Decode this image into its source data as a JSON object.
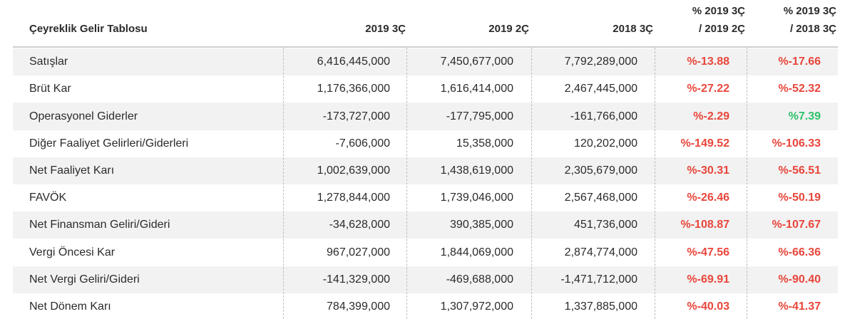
{
  "table": {
    "title": "Çeyreklik Gelir Tablosu",
    "columns": [
      [
        "2019 3Ç"
      ],
      [
        "2019 2Ç"
      ],
      [
        "2018 3Ç"
      ],
      [
        "% 2019 3Ç",
        "/ 2019 2Ç"
      ],
      [
        "% 2019 3Ç",
        "/ 2018 3Ç"
      ]
    ],
    "rows": [
      [
        "Satışlar",
        "6,416,445,000",
        "7,450,677,000",
        "7,792,289,000",
        "%-13.88",
        "%-17.66"
      ],
      [
        "Brüt Kar",
        "1,176,366,000",
        "1,616,414,000",
        "2,467,445,000",
        "%-27.22",
        "%-52.32"
      ],
      [
        "Operasyonel Giderler",
        "-173,727,000",
        "-177,795,000",
        "-161,766,000",
        "%-2.29",
        "%7.39"
      ],
      [
        "Diğer Faaliyet Gelirleri/Giderleri",
        "-7,606,000",
        "15,358,000",
        "120,202,000",
        "%-149.52",
        "%-106.33"
      ],
      [
        "Net Faaliyet Karı",
        "1,002,639,000",
        "1,438,619,000",
        "2,305,679,000",
        "%-30.31",
        "%-56.51"
      ],
      [
        "FAVÖK",
        "1,278,844,000",
        "1,739,046,000",
        "2,567,468,000",
        "%-26.46",
        "%-50.19"
      ],
      [
        "Net Finansman Geliri/Gideri",
        "-34,628,000",
        "390,385,000",
        "451,736,000",
        "%-108.87",
        "%-107.67"
      ],
      [
        "Vergi Öncesi Kar",
        "967,027,000",
        "1,844,069,000",
        "2,874,774,000",
        "%-47.56",
        "%-66.36"
      ],
      [
        "Net Vergi Geliri/Gideri",
        "-141,329,000",
        "-469,688,000",
        "-1,471,712,000",
        "%-69.91",
        "%-90.40"
      ],
      [
        "Net Dönem Karı",
        "784,399,000",
        "1,307,972,000",
        "1,337,885,000",
        "%-40.03",
        "%-41.37"
      ]
    ],
    "colors": {
      "negative": "#e8463b",
      "positive": "#2fc26a"
    }
  }
}
